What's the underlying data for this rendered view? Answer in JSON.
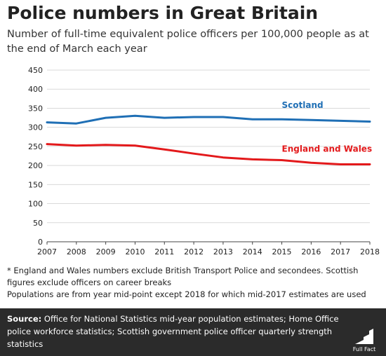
{
  "header": {
    "title": "Police numbers in Great Britain",
    "subtitle": "Number of full-time equivalent police officers per 100,000 people as at the end of March each year"
  },
  "chart_data": {
    "type": "line",
    "x": [
      2007,
      2008,
      2009,
      2010,
      2011,
      2012,
      2013,
      2014,
      2015,
      2016,
      2017,
      2018
    ],
    "ylim": [
      0,
      450
    ],
    "yticks": [
      0,
      50,
      100,
      150,
      200,
      250,
      300,
      350,
      400,
      450
    ],
    "grid": true,
    "series": [
      {
        "name": "Scotland",
        "color": "#1f6fb5",
        "values": [
          313,
          310,
          325,
          330,
          325,
          327,
          327,
          321,
          321,
          319,
          317,
          315
        ]
      },
      {
        "name": "England and Wales",
        "color": "#e3191b",
        "values": [
          256,
          252,
          254,
          252,
          242,
          231,
          221,
          216,
          214,
          207,
          203,
          203
        ]
      }
    ]
  },
  "notes": {
    "line1": "* England and Wales numbers exclude British Transport Police and secondees. Scottish figures exclude officers on career breaks",
    "line2": "Populations are from year mid-point except 2018 for which mid-2017 estimates are used"
  },
  "footer": {
    "source_label": "Source:",
    "source_text": "Office for National Statistics mid-year population estimates; Home Office police workforce statistics; Scottish government police officer quarterly strength statistics",
    "logo_text": "Full Fact"
  }
}
